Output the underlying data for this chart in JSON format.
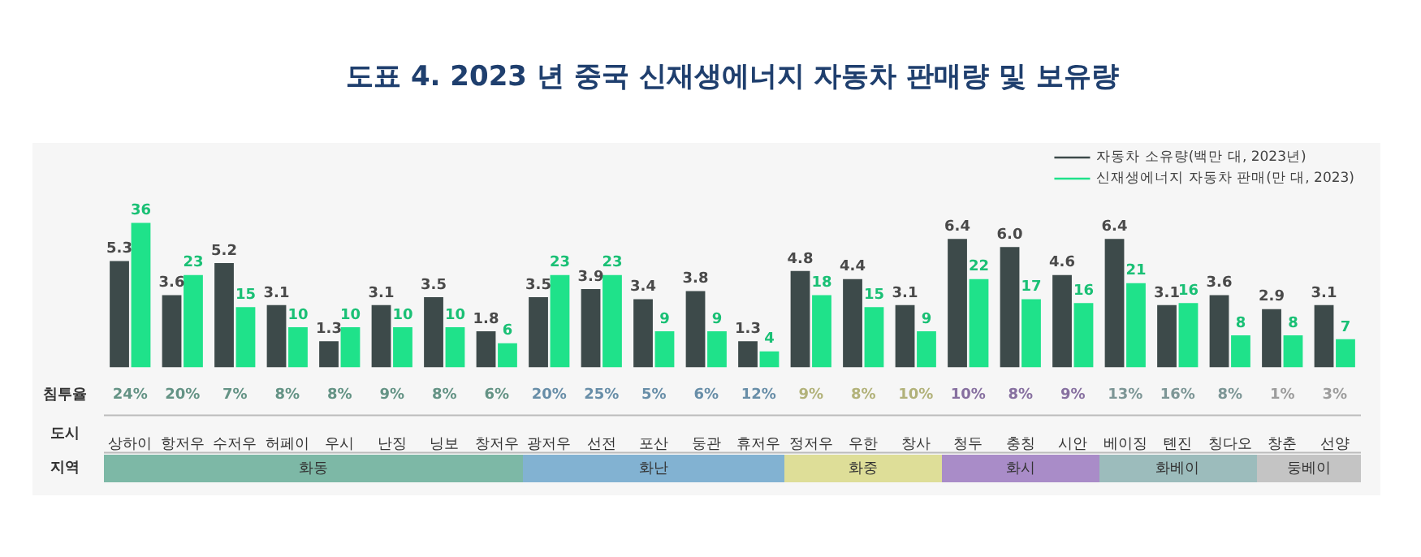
{
  "chart_data": {
    "type": "bar",
    "title": "도표 4. 2023 년 중국 신재생에너지 자동차 판매량 및 보유량",
    "categories": [
      "상하이",
      "항저우",
      "수저우",
      "허페이",
      "우시",
      "난징",
      "닝보",
      "창저우",
      "광저우",
      "선전",
      "포산",
      "둥관",
      "휴저우",
      "정저우",
      "우한",
      "창사",
      "청두",
      "충칭",
      "시안",
      "베이징",
      "톈진",
      "칭다오",
      "창춘",
      "선양"
    ],
    "series": [
      {
        "name": "자동차 소유량(백만 대, 2023년)",
        "color": "#3d4a4a",
        "values": [
          5.3,
          3.6,
          5.2,
          3.1,
          1.3,
          3.1,
          3.5,
          1.8,
          3.5,
          3.9,
          3.4,
          3.8,
          1.3,
          4.8,
          4.4,
          3.1,
          6.4,
          6.0,
          4.6,
          6.4,
          3.1,
          3.6,
          2.9,
          3.1
        ],
        "value_labels": [
          "5.3",
          "3.6",
          "5.2",
          "3.1",
          "1.3",
          "3.1",
          "3.5",
          "1.8",
          "3.5",
          "3.9",
          "3.4",
          "3.8",
          "1.3",
          "4.8",
          "4.4",
          "3.1",
          "6.4",
          "6.0",
          "4.6",
          "6.4",
          "3.1",
          "3.6",
          "2.9",
          "3.1"
        ]
      },
      {
        "name": "신재생에너지 자동차 판매(만 대, 2023)",
        "color": "#1fe28a",
        "axis": "y2",
        "values": [
          36,
          23,
          15,
          10,
          10,
          10,
          10,
          6,
          23,
          23,
          9,
          9,
          4,
          18,
          15,
          9,
          22,
          17,
          16,
          21,
          16,
          8,
          8,
          7
        ],
        "value_labels": [
          "36",
          "23",
          "15",
          "10",
          "10",
          "10",
          "10",
          "6",
          "23",
          "23",
          "9",
          "9",
          "4",
          "18",
          "15",
          "9",
          "22",
          "17",
          "16",
          "21",
          "16",
          "8",
          "8",
          "7"
        ]
      }
    ],
    "legend": "top right",
    "annotations": [
      "침투율",
      "도시",
      "지역",
      "24%",
      "20%",
      "7%",
      "8%",
      "8%",
      "9%",
      "8%",
      "6%",
      "20%",
      "25%",
      "5%",
      "6%",
      "12%",
      "9%",
      "8%",
      "10%",
      "10%",
      "8%",
      "9%",
      "13%",
      "16%",
      "8%",
      "1%",
      "3%",
      "화동",
      "화난",
      "화중",
      "화시",
      "화베이",
      "둥베이"
    ]
  }
}
